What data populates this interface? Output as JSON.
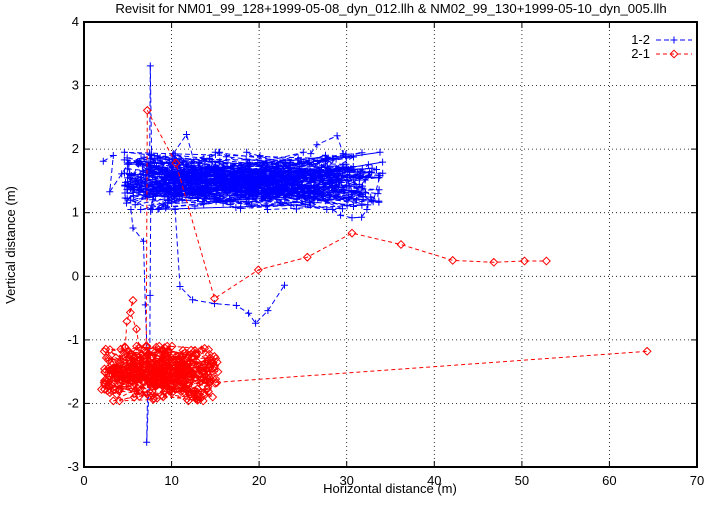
{
  "chart_data": {
    "type": "line",
    "title": "Revisit for NM01_99_128+1999-05-08_dyn_012.llh & NM02_99_130+1999-05-10_dyn_005.llh",
    "xlabel": "Horizontal distance (m)",
    "ylabel": "Vertical distance (m)",
    "xlim": [
      0,
      70
    ],
    "ylim": [
      -3,
      4
    ],
    "x_ticks": [
      0,
      10,
      20,
      30,
      40,
      50,
      60,
      70
    ],
    "y_ticks": [
      4,
      3,
      2,
      1,
      0,
      -1,
      -2,
      -3
    ],
    "grid": "dotted",
    "background": "#ffffff",
    "axis_color": "#000000",
    "legend_position": "top-right-inside",
    "series": [
      {
        "name": "1-2",
        "color": "#0000ff",
        "marker": "plus",
        "line_style": "dashed",
        "cluster": {
          "description": "dense zigzag band of revisit points connected by dashed segments",
          "x_range": [
            4.6,
            34.2
          ],
          "y_range": [
            1.05,
            1.95
          ],
          "count": 470,
          "seed": 20
        },
        "key_paths": {
          "left_scatter": [
            [
              2.2,
              1.81
            ],
            [
              3.35,
              1.9
            ],
            [
              2.95,
              1.33
            ],
            [
              4.3,
              1.61
            ],
            [
              5.1,
              1.78
            ]
          ],
          "spike_up": [
            [
              7.5,
              1.92
            ],
            [
              7.57,
              3.31
            ],
            [
              7.72,
              1.92
            ]
          ],
          "top_notch_left": [
            [
              10.2,
              1.93
            ],
            [
              11.7,
              2.23
            ],
            [
              13.0,
              1.6
            ]
          ],
          "top_notch_right": [
            [
              25.9,
              1.93
            ],
            [
              26.6,
              2.07
            ],
            [
              28.9,
              2.21
            ],
            [
              29.6,
              1.93
            ]
          ],
          "spike_down": [
            [
              5.35,
              1.05
            ],
            [
              5.6,
              0.76
            ],
            [
              6.8,
              0.55
            ],
            [
              7.0,
              -0.45
            ],
            [
              7.3,
              -1.5
            ],
            [
              7.16,
              -2.61
            ],
            [
              7.5,
              -1.5
            ],
            [
              7.55,
              -0.3
            ],
            [
              7.62,
              1.05
            ]
          ],
          "dip": [
            [
              10.4,
              1.05
            ],
            [
              10.96,
              -0.16
            ],
            [
              12.4,
              -0.37
            ],
            [
              14.9,
              -0.43
            ],
            [
              17.4,
              -0.46
            ],
            [
              18.8,
              -0.58
            ],
            [
              19.6,
              -0.74
            ],
            [
              21.0,
              -0.54
            ],
            [
              22.9,
              -0.14
            ]
          ],
          "lower_right": [
            [
              28.4,
              1.05
            ],
            [
              29.3,
              0.96
            ],
            [
              30.6,
              0.92
            ],
            [
              31.7,
              0.93
            ],
            [
              32.3,
              1.05
            ]
          ]
        }
      },
      {
        "name": "2-1",
        "color": "#ff0000",
        "marker": "diamond",
        "line_style": "dashed",
        "cluster": {
          "description": "dense cluster of revisit points connected by dashed segments",
          "x_range": [
            2.3,
            15.4
          ],
          "y_range": [
            -1.96,
            -1.1
          ],
          "count": 330,
          "seed": 7
        },
        "key_paths": {
          "spike_journey": [
            [
              7.1,
              -1.25
            ],
            [
              7.23,
              2.61
            ],
            [
              10.5,
              1.78
            ],
            [
              14.9,
              -0.35
            ],
            [
              19.9,
              0.1
            ],
            [
              25.5,
              0.3
            ],
            [
              30.6,
              0.68
            ],
            [
              36.2,
              0.5
            ],
            [
              42.1,
              0.25
            ],
            [
              46.8,
              0.22
            ],
            [
              50.3,
              0.24
            ],
            [
              52.8,
              0.24
            ]
          ],
          "long_line": [
            [
              4.0,
              -1.78
            ],
            [
              64.3,
              -1.18
            ]
          ],
          "upper_fringe": [
            [
              4.7,
              -1.12
            ],
            [
              4.9,
              -0.71
            ],
            [
              5.6,
              -0.38
            ],
            [
              5.3,
              -0.57
            ],
            [
              6.0,
              -0.83
            ],
            [
              6.3,
              -1.12
            ]
          ],
          "left_fringe": [
            [
              2.0,
              -1.78
            ],
            [
              2.35,
              -1.64
            ],
            [
              3.2,
              -1.72
            ]
          ]
        }
      }
    ]
  }
}
